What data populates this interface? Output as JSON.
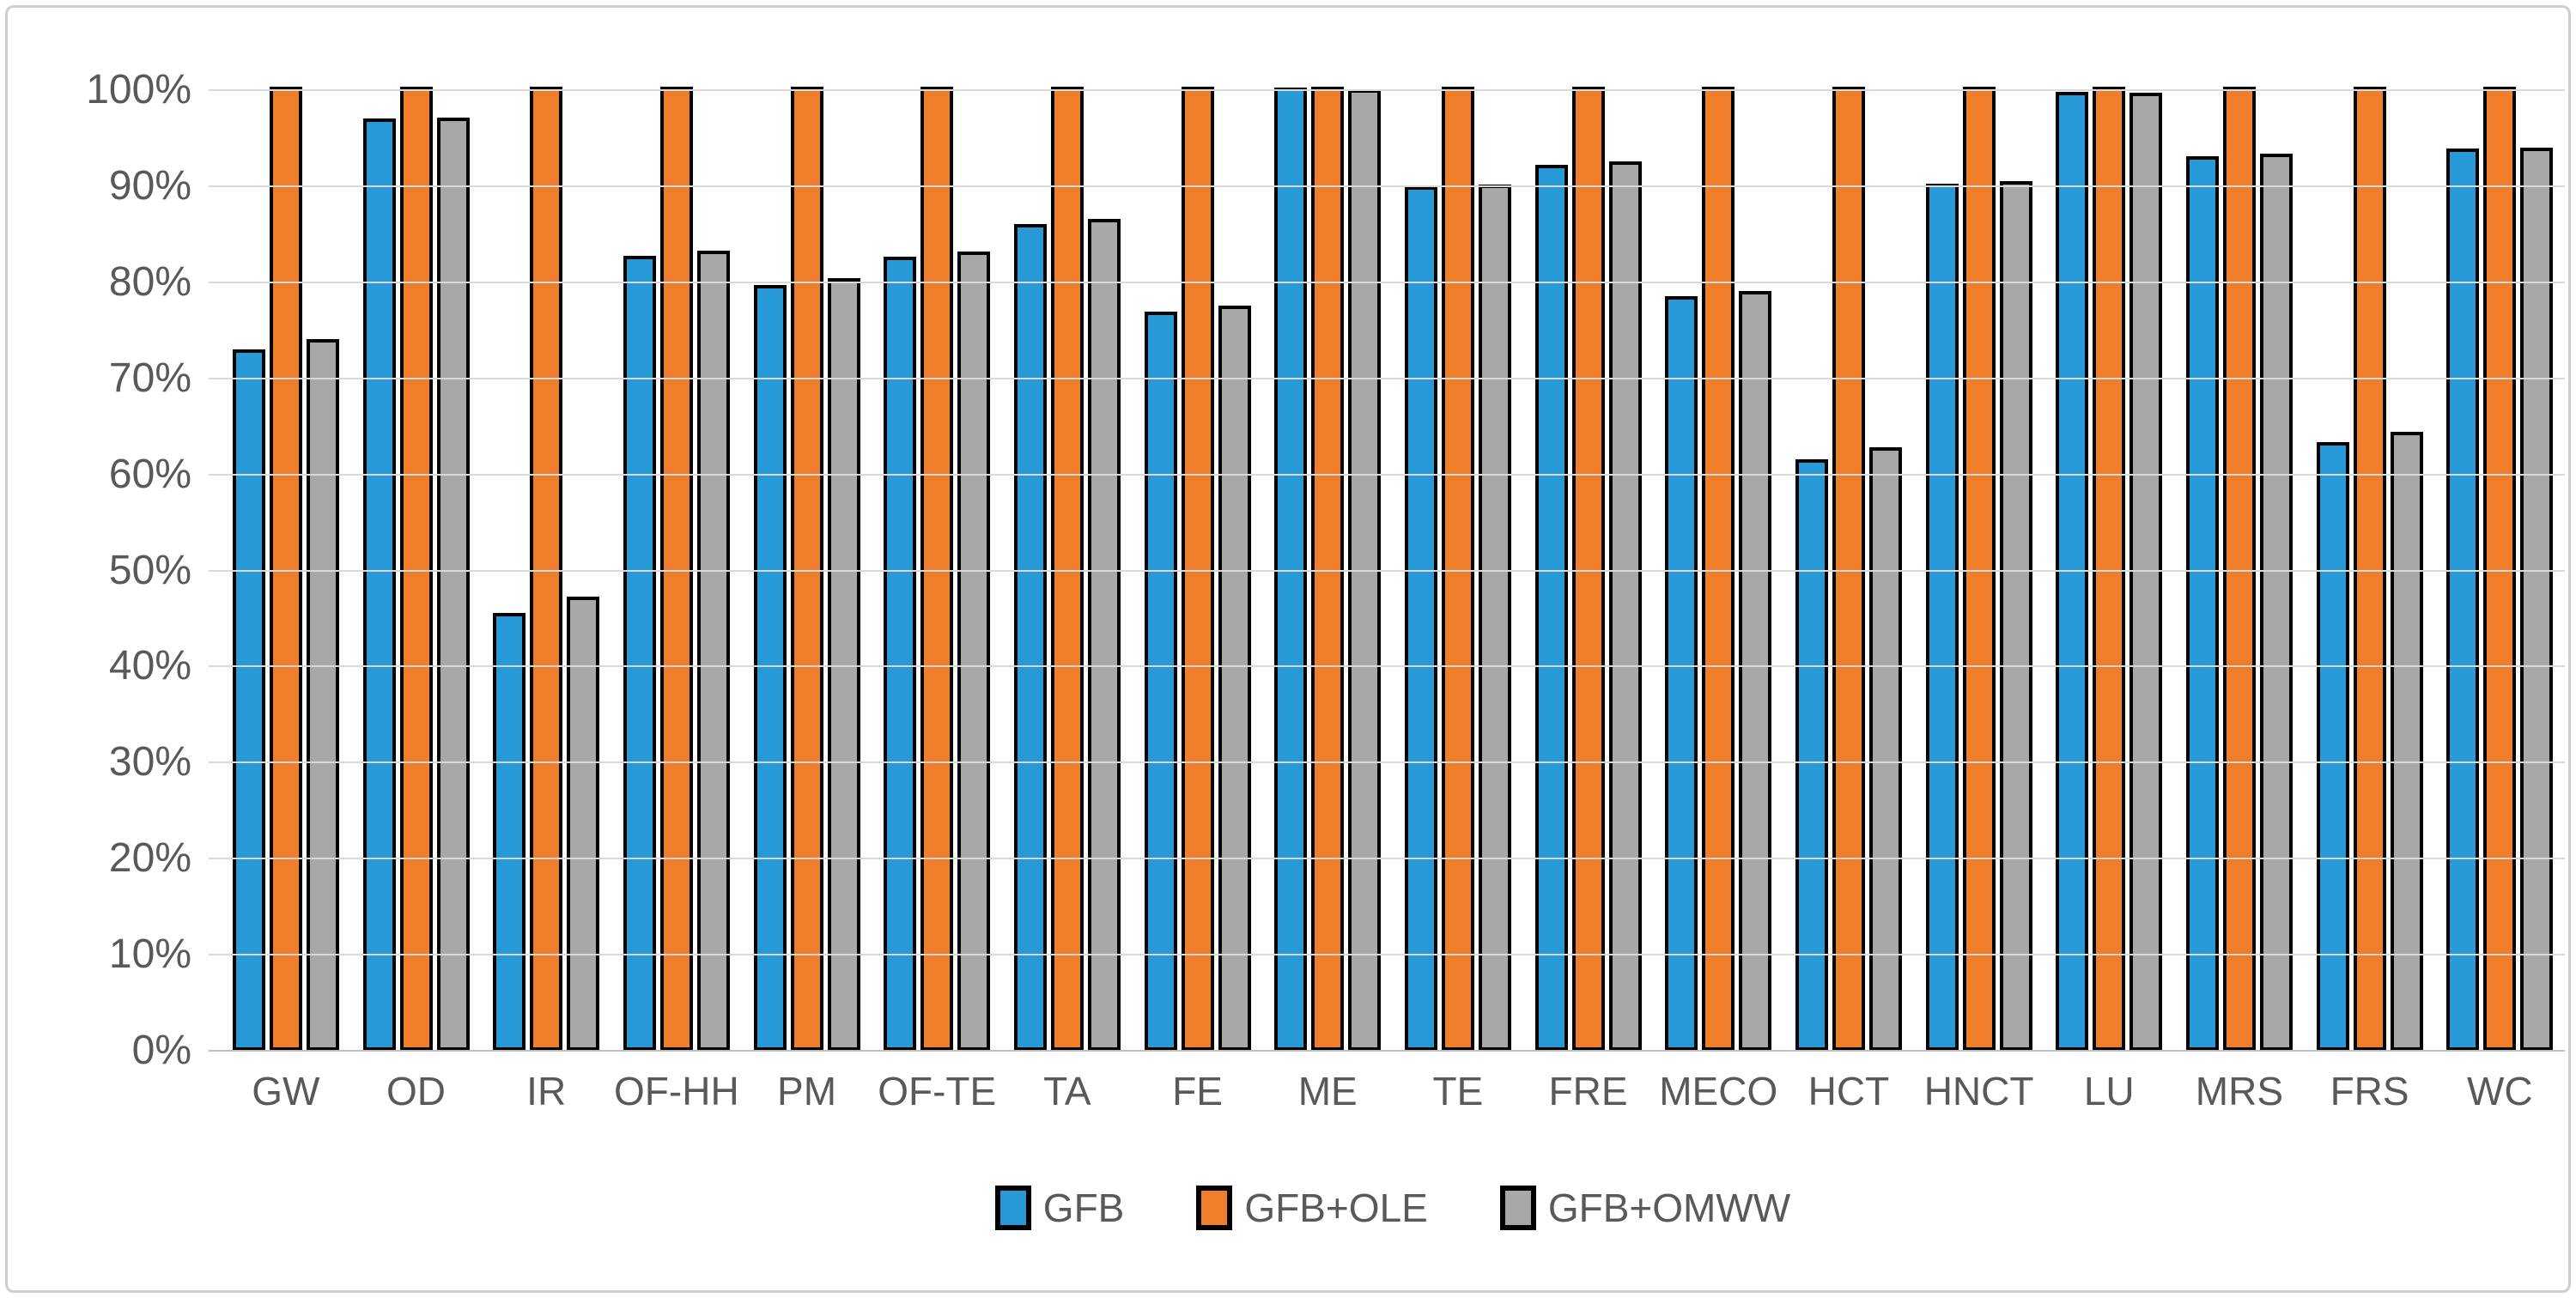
{
  "chart_data": {
    "type": "bar",
    "title": "",
    "xlabel": "",
    "ylabel": "",
    "ylim": [
      0,
      100
    ],
    "ytick_step": 10,
    "ytick_suffix": "%",
    "ytick_labels": [
      "0%",
      "10%",
      "20%",
      "30%",
      "40%",
      "50%",
      "60%",
      "70%",
      "80%",
      "90%",
      "100%"
    ],
    "grid": "horizontal",
    "legend_position": "bottom-center",
    "categories": [
      "GW",
      "OD",
      "IR",
      "OF-HH",
      "PM",
      "OF-TE",
      "TA",
      "FE",
      "ME",
      "TE",
      "FRE",
      "MECO",
      "HCT",
      "HNCT",
      "LU",
      "MRS",
      "FRS",
      "WC"
    ],
    "series": [
      {
        "name": "GFB",
        "color": "#2699d6",
        "values": [
          72.7,
          96.7,
          45.2,
          82.4,
          79.4,
          82.3,
          85.7,
          76.6,
          99.9,
          89.6,
          91.9,
          78.2,
          61.2,
          89.9,
          99.5,
          92.8,
          63.0,
          93.6
        ]
      },
      {
        "name": "GFB+OLE",
        "color": "#f07d29",
        "values": [
          100,
          100,
          100,
          100,
          100,
          100,
          100,
          100,
          100,
          100,
          100,
          100,
          100,
          100,
          100,
          100,
          100,
          100
        ]
      },
      {
        "name": "GFB+OMWW",
        "color": "#a8a8a8",
        "values": [
          73.7,
          96.8,
          46.9,
          82.9,
          80.1,
          82.8,
          86.2,
          77.2,
          99.7,
          89.8,
          92.2,
          78.7,
          62.5,
          90.2,
          99.4,
          93.0,
          64.1,
          93.7
        ]
      }
    ],
    "bar_border_color": "#000000",
    "axis_text_color": "#595959",
    "gridline_color": "#d9d9d9",
    "baseline_color": "#bfbfbf"
  }
}
